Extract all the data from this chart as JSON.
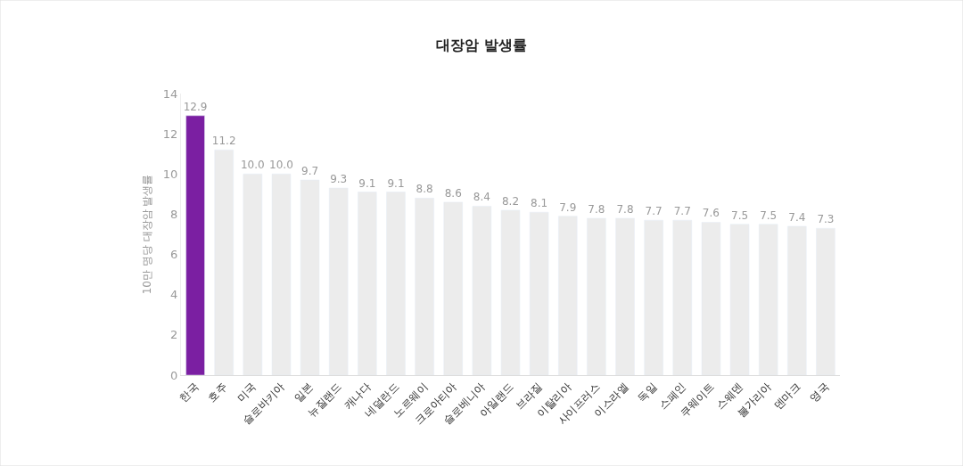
{
  "chart_data": {
    "type": "bar",
    "title": "대장암 발생률",
    "ylabel": "10만 명당 대장암 발생률",
    "categories": [
      "한국",
      "호주",
      "미국",
      "슬로바키아",
      "일본",
      "뉴질랜드",
      "캐나다",
      "네덜란드",
      "노르웨이",
      "크로아티아",
      "슬로베니아",
      "아일랜드",
      "브라질",
      "이탈리아",
      "사이프러스",
      "이스라엘",
      "독일",
      "스페인",
      "쿠웨이트",
      "스웨덴",
      "불가리아",
      "덴마크",
      "영국"
    ],
    "values": [
      12.9,
      11.2,
      10.0,
      10.0,
      9.7,
      9.3,
      9.1,
      9.1,
      8.8,
      8.6,
      8.4,
      8.2,
      8.1,
      7.9,
      7.8,
      7.8,
      7.7,
      7.7,
      7.6,
      7.5,
      7.5,
      7.4,
      7.3
    ],
    "value_labels": [
      "12.9",
      "11.2",
      "10.0",
      "10.0",
      "9.7",
      "9.3",
      "9.1",
      "9.1",
      "8.8",
      "8.6",
      "8.4",
      "8.2",
      "8.1",
      "7.9",
      "7.8",
      "7.8",
      "7.7",
      "7.7",
      "7.6",
      "7.5",
      "7.5",
      "7.4",
      "7.3"
    ],
    "colors": [
      "#7b1fa2",
      "#ececec",
      "#ececec",
      "#ececec",
      "#ececec",
      "#ececec",
      "#ececec",
      "#ececec",
      "#ececec",
      "#ececec",
      "#ececec",
      "#ececec",
      "#ececec",
      "#ececec",
      "#ececec",
      "#ececec",
      "#ececec",
      "#ececec",
      "#ececec",
      "#ececec",
      "#ececec",
      "#ececec",
      "#ececec"
    ],
    "ylim": [
      0,
      14
    ],
    "yticks": [
      0,
      2,
      4,
      6,
      8,
      10,
      12,
      14
    ]
  }
}
